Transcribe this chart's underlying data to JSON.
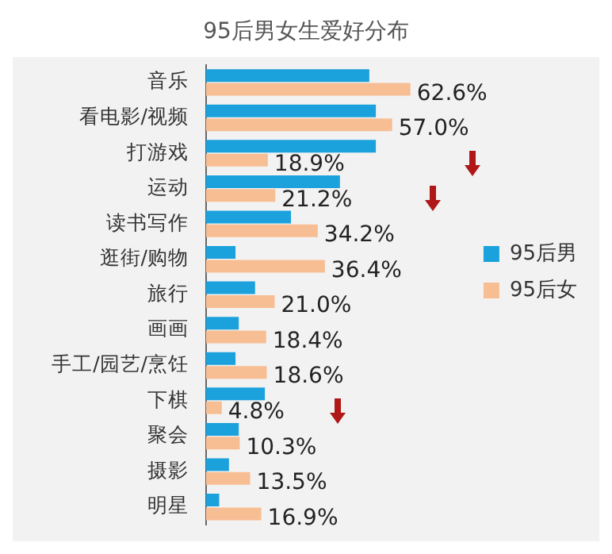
{
  "chart_data": {
    "type": "bar",
    "orientation": "horizontal",
    "title": "95后男女生爱好分布",
    "categories": [
      "音乐",
      "看电影/视频",
      "打游戏",
      "运动",
      "读书写作",
      "逛街/购物",
      "旅行",
      "画画",
      "手工/园艺/烹饪",
      "下棋",
      "聚会",
      "摄影",
      "明星"
    ],
    "series": [
      {
        "name": "95后男",
        "color": "#1ba1dc",
        "values": [
          50,
          52,
          52,
          41,
          26,
          9,
          15,
          10,
          9,
          18,
          10,
          7,
          4
        ]
      },
      {
        "name": "95后女",
        "color": "#f8be93",
        "values": [
          62.6,
          57.0,
          18.9,
          21.2,
          34.2,
          36.4,
          21.0,
          18.4,
          18.6,
          4.8,
          10.3,
          13.5,
          16.9
        ],
        "value_labels": [
          "62.6%",
          "57.0%",
          "18.9%",
          "21.2%",
          "34.2%",
          "36.4%",
          "21.0%",
          "18.4%",
          "18.6%",
          "4.8%",
          "10.3%",
          "13.5%",
          "16.9%"
        ]
      }
    ],
    "legend": "right"
  }
}
